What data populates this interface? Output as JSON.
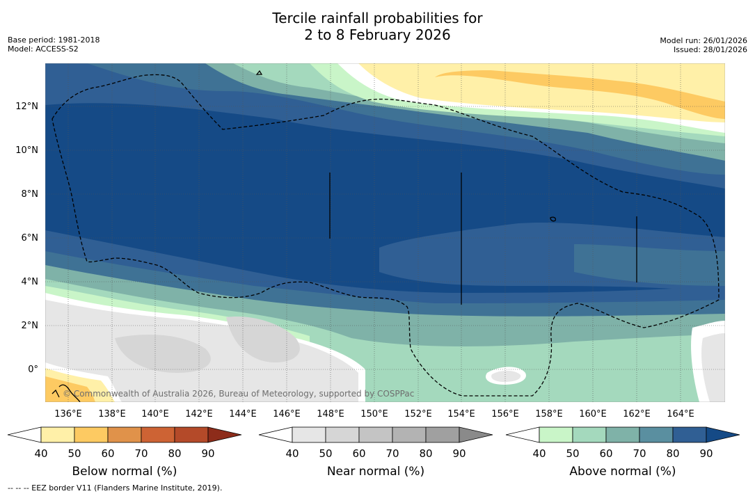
{
  "title": {
    "line1": "Tercile rainfall probabilities for",
    "line2": "2 to 8 February 2026"
  },
  "meta_left": {
    "base_period": "Base period: 1981-2018",
    "model": "Model: ACCESS-S2"
  },
  "meta_right": {
    "model_run": "Model run: 26/01/2026",
    "issued": "Issued: 28/01/2026"
  },
  "map": {
    "lat_labels": [
      "12°N",
      "10°N",
      "8°N",
      "6°N",
      "4°N",
      "2°N",
      "0°"
    ],
    "lon_labels": [
      "136°E",
      "138°E",
      "140°E",
      "142°E",
      "144°E",
      "146°E",
      "148°E",
      "150°E",
      "152°E",
      "154°E",
      "156°E",
      "158°E",
      "160°E",
      "162°E",
      "164°E"
    ],
    "copyright": "© Commonwealth of Australia 2026, Bureau of Meteorology, supported by COSPPac"
  },
  "colorbars": [
    {
      "name": "below",
      "title": "Below normal (%)",
      "ticks": [
        "40",
        "50",
        "60",
        "70",
        "80",
        "90"
      ],
      "colors": [
        "#fff0a8",
        "#fdca62",
        "#e0924a",
        "#cd6334",
        "#b44a29",
        "#8d2c1a"
      ]
    },
    {
      "name": "near",
      "title": "Near normal (%)",
      "ticks": [
        "40",
        "50",
        "60",
        "70",
        "80",
        "90"
      ],
      "colors": [
        "#e6e6e6",
        "#d6d6d6",
        "#c4c4c4",
        "#b3b3b3",
        "#a0a0a0",
        "#8a8a8a"
      ]
    },
    {
      "name": "above",
      "title": "Above normal (%)",
      "ticks": [
        "40",
        "50",
        "60",
        "70",
        "80",
        "90"
      ],
      "colors": [
        "#c9f5c8",
        "#a4d9bd",
        "#7fb2a8",
        "#5a8fa0",
        "#305f94",
        "#154a86"
      ]
    }
  ],
  "footnote": "-- -- -- EEZ border V11 (Flanders Marine Institute, 2019)."
}
